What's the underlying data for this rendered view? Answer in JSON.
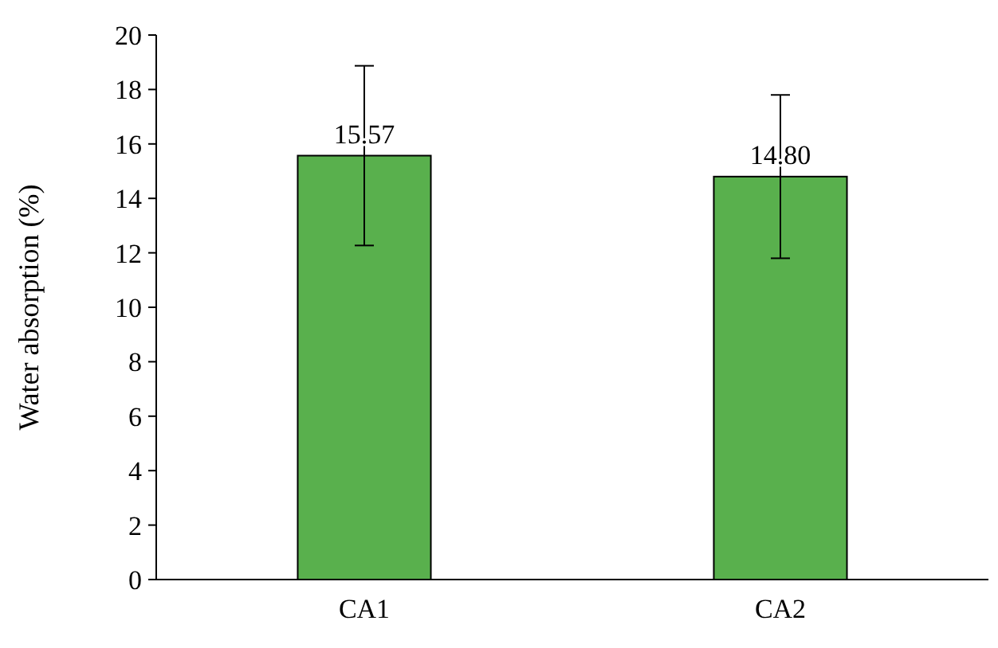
{
  "chart_data": {
    "type": "bar",
    "ylabel": "Water absorption (%)",
    "categories": [
      "CA1",
      "CA2"
    ],
    "values": [
      15.57,
      14.8
    ],
    "value_labels": [
      "15.57",
      "14.80"
    ],
    "errors": [
      3.3,
      3.0
    ],
    "color": "#59b04d",
    "ylim": [
      0,
      20
    ],
    "yticks": [
      0,
      2,
      4,
      6,
      8,
      10,
      12,
      14,
      16,
      18,
      20
    ],
    "grid": false
  }
}
